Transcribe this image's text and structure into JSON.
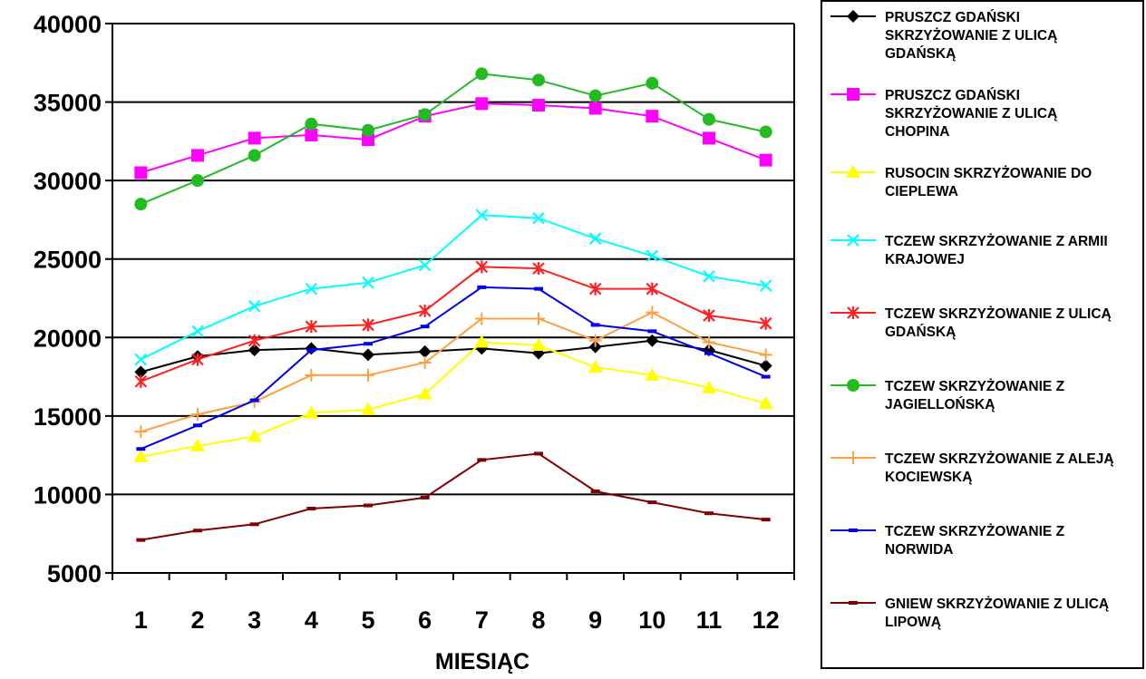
{
  "chart_data": {
    "type": "line",
    "xlabel": "MIESIĄC",
    "ylabel": "",
    "x": [
      1,
      2,
      3,
      4,
      5,
      6,
      7,
      8,
      9,
      10,
      11,
      12
    ],
    "ylim": [
      5000,
      40000
    ],
    "yticks": [
      5000,
      10000,
      15000,
      20000,
      25000,
      30000,
      35000,
      40000
    ],
    "grid": "horizontal",
    "legend_position": "right",
    "series": [
      {
        "name": "PRUSZCZ GDAŃSKI SKRZYŻOWANIE Z ULICĄ GDAŃSKĄ",
        "color": "#000000",
        "marker": "diamond",
        "values": [
          17800,
          18800,
          19200,
          19300,
          18900,
          19100,
          19300,
          19000,
          19400,
          19800,
          19200,
          18200
        ]
      },
      {
        "name": "PRUSZCZ GDAŃSKI SKRZYŻOWANIE Z ULICĄ CHOPINA",
        "color": "#ff00ff",
        "marker": "square",
        "values": [
          30500,
          31600,
          32700,
          32900,
          32600,
          34100,
          34900,
          34800,
          34600,
          34100,
          32700,
          31300
        ]
      },
      {
        "name": "RUSOCIN SKRZYŻOWANIE DO CIEPLEWA",
        "color": "#ffff00",
        "marker": "triangle",
        "values": [
          12400,
          13100,
          13700,
          15200,
          15400,
          16400,
          19700,
          19500,
          18100,
          17600,
          16800,
          15800
        ]
      },
      {
        "name": "TCZEW SKRZYŻOWANIE Z ARMII KRAJOWEJ",
        "color": "#00ffff",
        "marker": "x",
        "values": [
          18600,
          20400,
          22000,
          23100,
          23500,
          24600,
          27800,
          27600,
          26300,
          25200,
          23900,
          23300
        ]
      },
      {
        "name": "TCZEW SKRZYŻOWANIE Z ULICĄ GDAŃSKĄ",
        "color": "#ff2020",
        "marker": "star",
        "values": [
          17200,
          18600,
          19800,
          20700,
          20800,
          21700,
          24500,
          24400,
          23100,
          23100,
          21400,
          20900
        ]
      },
      {
        "name": "TCZEW SKRZYŻOWANIE Z JAGIELLOŃSKĄ",
        "color": "#22bb22",
        "marker": "circle",
        "values": [
          28500,
          30000,
          31600,
          33600,
          33200,
          34200,
          36800,
          36400,
          35400,
          36200,
          33900,
          33100
        ]
      },
      {
        "name": "TCZEW SKRZYŻOWANIE Z ALEJĄ KOCIEWSKĄ",
        "color": "#ffa040",
        "marker": "plus",
        "values": [
          14000,
          15100,
          15900,
          17600,
          17600,
          18400,
          21200,
          21200,
          19800,
          21600,
          19700,
          18900
        ]
      },
      {
        "name": "TCZEW SKRZYŻOWANIE Z NORWIDA",
        "color": "#0000ee",
        "marker": "dash",
        "values": [
          12900,
          14400,
          16000,
          19200,
          19600,
          20700,
          23200,
          23100,
          20800,
          20400,
          19000,
          17500
        ]
      },
      {
        "name": "GNIEW SKRZYŻOWANIE Z ULICĄ LIPOWĄ",
        "color": "#800000",
        "marker": "dash",
        "values": [
          7100,
          7700,
          8100,
          9100,
          9300,
          9800,
          12200,
          12600,
          10200,
          9500,
          8800,
          8400
        ]
      }
    ]
  },
  "legend": {
    "entries": [
      {
        "lines": [
          "PRUSZCZ GDAŃSKI",
          "SKRZYŻOWANIE Z ULICĄ",
          "GDAŃSKĄ"
        ]
      },
      {
        "lines": [
          "PRUSZCZ GDAŃSKI",
          "SKRZYŻOWANIE Z ULICĄ",
          "CHOPINA"
        ]
      },
      {
        "lines": [
          "RUSOCIN SKRZYŻOWANIE DO",
          "CIEPLEWA"
        ]
      },
      {
        "lines": [
          "TCZEW SKRZYŻOWANIE Z ARMII",
          "KRAJOWEJ"
        ]
      },
      {
        "lines": [
          "TCZEW SKRZYŻOWANIE Z ULICĄ",
          "GDAŃSKĄ"
        ]
      },
      {
        "lines": [
          "TCZEW SKRZYŻOWANIE Z",
          "JAGIELLOŃSKĄ"
        ]
      },
      {
        "lines": [
          "TCZEW SKRZYŻOWANIE Z ALEJĄ",
          "KOCIEWSKĄ"
        ]
      },
      {
        "lines": [
          "TCZEW SKRZYŻOWANIE Z",
          "NORWIDA"
        ]
      },
      {
        "lines": [
          "GNIEW SKRZYŻOWANIE Z ULICĄ",
          "LIPOWĄ"
        ]
      }
    ]
  }
}
